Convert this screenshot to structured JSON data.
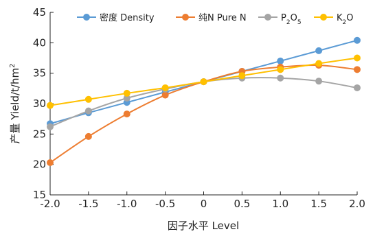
{
  "chart_data": {
    "type": "line",
    "xlabel": "因子水平 Level",
    "ylabel_main": "产量 Yield/",
    "ylabel_unit": "t/hm",
    "ylabel_unit_sup": "2",
    "xlim": [
      -2.0,
      2.0
    ],
    "ylim": [
      15,
      45
    ],
    "xticks": [
      "-2.0",
      "-1.5",
      "-1.0",
      "-0.5",
      "0",
      "0.5",
      "1.0",
      "1.5",
      "2.0"
    ],
    "yticks": [
      "15",
      "20",
      "25",
      "30",
      "35",
      "40",
      "45"
    ],
    "grid": false,
    "legend_position": "top",
    "x": [
      -2.0,
      -1.5,
      -1.0,
      -0.5,
      0,
      0.5,
      1.0,
      1.5,
      2.0
    ],
    "series": [
      {
        "name": "密度 Density",
        "name_main": "密度 Density",
        "name_sub": "",
        "name_tail": "",
        "name_sub2": "",
        "name_tail2": "",
        "color": "#5b9bd5",
        "values": [
          26.7,
          28.5,
          30.2,
          31.9,
          33.6,
          35.3,
          37.0,
          38.7,
          40.4
        ]
      },
      {
        "name": "纯N Pure N",
        "name_main": "纯N Pure N",
        "name_sub": "",
        "name_tail": "",
        "name_sub2": "",
        "name_tail2": "",
        "color": "#ed7d31",
        "values": [
          20.3,
          24.6,
          28.3,
          31.4,
          33.6,
          35.3,
          36.0,
          36.3,
          35.6
        ]
      },
      {
        "name": "P2O5",
        "name_main": "P",
        "name_sub": "2",
        "name_tail": "O",
        "name_sub2": "5",
        "name_tail2": "",
        "color": "#a5a5a5",
        "values": [
          26.2,
          28.8,
          30.9,
          32.4,
          33.6,
          34.2,
          34.2,
          33.7,
          32.6
        ]
      },
      {
        "name": "K2O",
        "name_main": "K",
        "name_sub": "2",
        "name_tail": "O",
        "name_sub2": "",
        "name_tail2": "",
        "color": "#ffc000",
        "values": [
          29.7,
          30.7,
          31.7,
          32.6,
          33.6,
          34.6,
          35.6,
          36.6,
          37.5
        ]
      }
    ]
  }
}
